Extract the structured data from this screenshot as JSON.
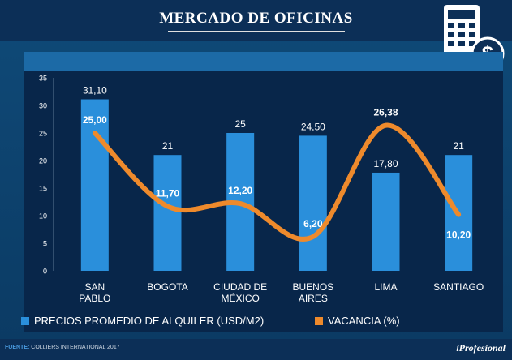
{
  "header": {
    "title": "MERCADO DE OFICINAS"
  },
  "icons": {
    "main": "calculator-dollar-icon"
  },
  "colors": {
    "bar": "#2a8fdb",
    "line": "#ee8a2c",
    "header": "#0c2f57",
    "panel": "#08264a"
  },
  "chart_data": {
    "type": "bar",
    "categories": [
      [
        "SAN",
        "PABLO"
      ],
      [
        "BOGOTA"
      ],
      [
        "CIUDAD DE",
        "MÉXICO"
      ],
      [
        "BUENOS",
        "AIRES"
      ],
      [
        "LIMA"
      ],
      [
        "SANTIAGO"
      ]
    ],
    "ylim": [
      0,
      35
    ],
    "yticks": [
      "0",
      "5",
      "10",
      "15",
      "20",
      "25",
      "30",
      "35"
    ],
    "series": [
      {
        "name": "PRECIOS PROMEDIO DE ALQUILER (USD/M2)",
        "type": "bar",
        "values": [
          31.1,
          21,
          25,
          24.5,
          17.8,
          21
        ],
        "labels": [
          "31,10",
          "21",
          "25",
          "24,50",
          "17,80",
          "21"
        ]
      },
      {
        "name": "VACANCIA (%)",
        "type": "line",
        "values": [
          25.0,
          11.7,
          12.2,
          6.2,
          26.38,
          10.2
        ],
        "labels": [
          "25,00",
          "11,70",
          "12,20",
          "6,20",
          "26,38",
          "10,20"
        ]
      }
    ],
    "legend_position": "bottom"
  },
  "footer": {
    "source_label": "FUENTE:",
    "source_text": "COLLIERS INTERNATIONAL 2017",
    "brand": "iProfesional"
  }
}
